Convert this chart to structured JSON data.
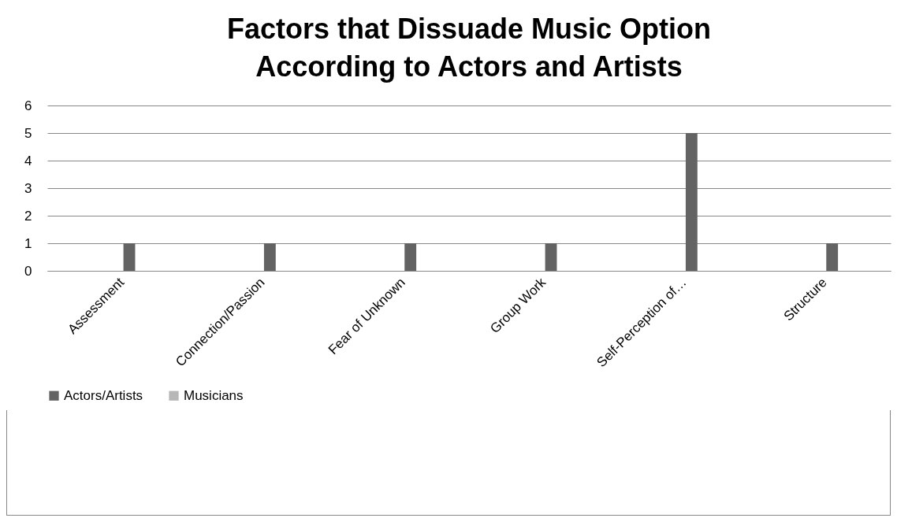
{
  "chart_data": {
    "type": "bar",
    "title": "Factors that Dissuade Music Option According to Actors and Artists",
    "categories": [
      "Assessment",
      "Connection/Passion",
      "Fear of Unknown",
      "Group Work",
      "Self-Perception of…",
      "Structure"
    ],
    "series": [
      {
        "name": "Actors/Artists",
        "color": "#636363",
        "values": [
          1,
          1,
          1,
          1,
          5,
          1
        ]
      },
      {
        "name": "Musicians",
        "color": "#b7b7b7",
        "values": [
          0,
          0,
          0,
          0,
          0,
          0
        ]
      }
    ],
    "ylim": [
      0,
      6
    ],
    "yticks": [
      0,
      1,
      2,
      3,
      4,
      5,
      6
    ],
    "grid": "y",
    "legend": "bottom"
  }
}
